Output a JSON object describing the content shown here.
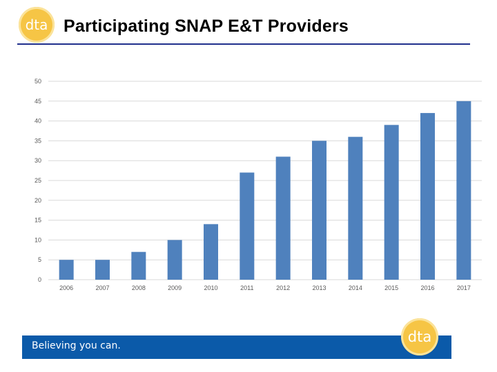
{
  "header": {
    "title": "Participating SNAP E&T Providers",
    "logo_text": "dta"
  },
  "footer": {
    "tagline": "Believing you can.",
    "logo_text": "dta"
  },
  "colors": {
    "title_rule": "#1f2f8c",
    "bar": "#4f81bd",
    "gridline": "#d9d9d9",
    "footer_band": "#0b5aa9",
    "logo": "#f6c545"
  },
  "chart_data": {
    "type": "bar",
    "categories": [
      "2006",
      "2007",
      "2008",
      "2009",
      "2010",
      "2011",
      "2012",
      "2013",
      "2014",
      "2015",
      "2016",
      "2017"
    ],
    "values": [
      5,
      5,
      7,
      10,
      14,
      27,
      31,
      35,
      36,
      39,
      42,
      45
    ],
    "title": "",
    "xlabel": "",
    "ylabel": "",
    "ylim": [
      0,
      50
    ],
    "yticks": [
      0,
      5,
      10,
      15,
      20,
      25,
      30,
      35,
      40,
      45,
      50
    ],
    "grid": true,
    "legend": "none"
  }
}
